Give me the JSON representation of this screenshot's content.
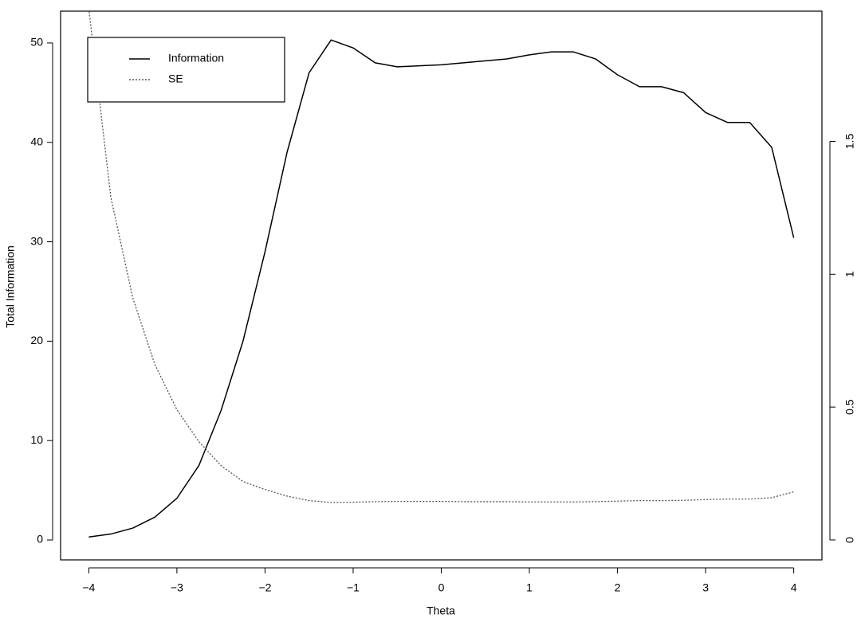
{
  "chart_data": {
    "type": "line",
    "xlabel": "Theta",
    "ylabel": "Total Information",
    "x": [
      -4,
      -3.75,
      -3.5,
      -3.25,
      -3,
      -2.75,
      -2.5,
      -2.25,
      -2,
      -1.75,
      -1.5,
      -1.25,
      -1,
      -0.75,
      -0.5,
      -0.25,
      0,
      0.25,
      0.5,
      0.75,
      1,
      1.25,
      1.5,
      1.75,
      2,
      2.25,
      2.5,
      2.75,
      3,
      3.25,
      3.5,
      3.75,
      4
    ],
    "series": [
      {
        "name": "Information",
        "color": "#000000",
        "dash": "solid",
        "values": [
          0.3,
          0.6,
          1.2,
          2.3,
          4.2,
          7.5,
          13,
          20,
          29,
          39,
          47,
          50.3,
          49.5,
          48,
          47.6,
          47.7,
          47.8,
          48,
          48.2,
          48.4,
          48.8,
          49.1,
          49.1,
          48.4,
          46.8,
          45.6,
          45.6,
          45,
          43,
          42,
          42,
          39.5,
          30.4
        ]
      },
      {
        "name": "SE",
        "color": "#555555",
        "dash": "dotted",
        "axis": "y2",
        "values": [
          2.0,
          1.29,
          0.91,
          0.66,
          0.49,
          0.37,
          0.28,
          0.22,
          0.19,
          0.165,
          0.148,
          0.141,
          0.142,
          0.144,
          0.145,
          0.145,
          0.145,
          0.144,
          0.144,
          0.144,
          0.143,
          0.143,
          0.143,
          0.144,
          0.146,
          0.148,
          0.148,
          0.149,
          0.152,
          0.154,
          0.154,
          0.159,
          0.181
        ]
      }
    ],
    "xlim": [
      -4.32,
      4.32
    ],
    "xticks": [
      {
        "value": -4,
        "label": "−4"
      },
      {
        "value": -3,
        "label": "−3"
      },
      {
        "value": -2,
        "label": "−2"
      },
      {
        "value": -1,
        "label": "−1"
      },
      0,
      1,
      2,
      3,
      4
    ],
    "ylim": [
      -2,
      53.2
    ],
    "yticks": [
      0,
      10,
      20,
      30,
      40,
      50
    ],
    "y2lim": [
      -0.075,
      1.99
    ],
    "y2ticks": [
      0,
      0.5,
      1,
      1.5
    ],
    "legend": "top-left",
    "grid": false
  }
}
